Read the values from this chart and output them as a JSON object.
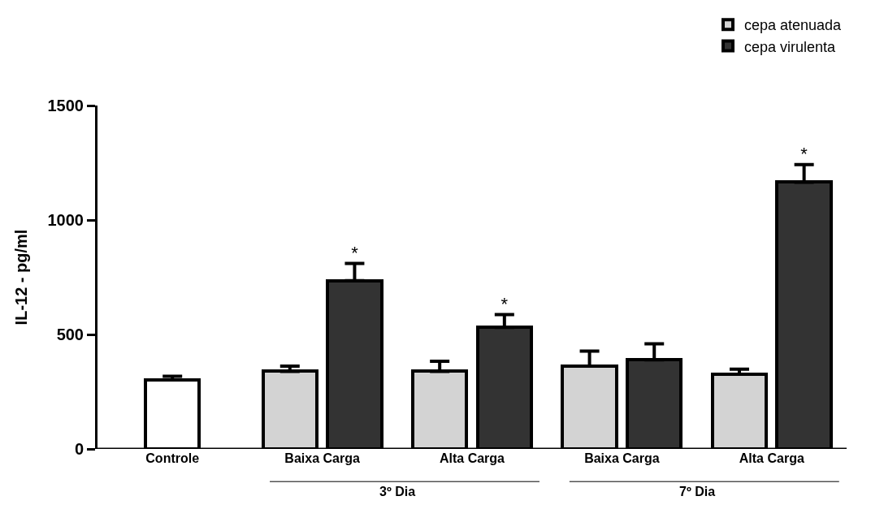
{
  "chart_data": {
    "type": "bar",
    "ylabel": "IL-12 - pg/ml",
    "categories": [
      "Controle",
      "Baixa Carga",
      "Alta Carga",
      "Baixa Carga",
      "Alta Carga"
    ],
    "series": [
      {
        "color": "#ffffff",
        "values": [
          301,
          null,
          null,
          null,
          null
        ],
        "errors": [
          [
            301,
            317
          ],
          null,
          null,
          null,
          null
        ]
      },
      {
        "name": "cepa atenuada",
        "color": "#d3d3d3",
        "values": [
          null,
          339,
          339,
          362,
          326
        ],
        "errors": [
          null,
          [
            339,
            362
          ],
          [
            339,
            383
          ],
          [
            362,
            427
          ],
          [
            326,
            348
          ]
        ]
      },
      {
        "name": "cepa virulenta",
        "color": "#333333",
        "values": [
          null,
          735,
          531,
          389,
          1165
        ],
        "errors": [
          null,
          [
            735,
            810
          ],
          [
            531,
            587
          ],
          [
            389,
            459
          ],
          [
            1165,
            1242
          ]
        ],
        "value_labels": [
          null,
          "*",
          "*",
          null,
          "*"
        ]
      }
    ],
    "ylim": [
      0,
      1500
    ],
    "yticks": [
      0,
      500,
      1000,
      1500
    ],
    "grid": false,
    "legend": "top right",
    "annotations": [
      "3º Dia",
      "7º Dia"
    ]
  }
}
